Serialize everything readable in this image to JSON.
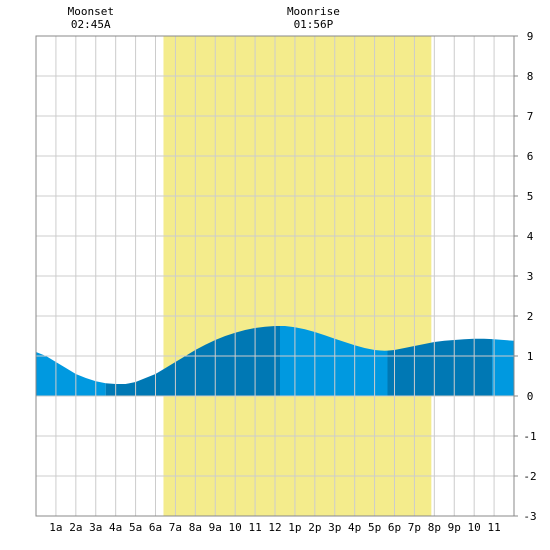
{
  "chart_data": {
    "type": "area",
    "moon_events": [
      {
        "label": "Moonset",
        "time": "02:45A",
        "hour": 2.75
      },
      {
        "label": "Moonrise",
        "time": "01:56P",
        "hour": 13.93
      }
    ],
    "daylight": {
      "start_hour": 6.4,
      "end_hour": 19.85
    },
    "x_tick_labels": [
      "1a",
      "2a",
      "3a",
      "4a",
      "5a",
      "6a",
      "7a",
      "8a",
      "9a",
      "10",
      "11",
      "12",
      "1p",
      "2p",
      "3p",
      "4p",
      "5p",
      "6p",
      "7p",
      "8p",
      "9p",
      "10",
      "11"
    ],
    "xlim": [
      0,
      24
    ],
    "ylim": [
      -3,
      9
    ],
    "y_ticks": [
      -3,
      -2,
      -1,
      0,
      1,
      2,
      3,
      4,
      5,
      6,
      7,
      8,
      9
    ],
    "grid": true,
    "tide": {
      "hours": [
        0,
        0.5,
        1,
        1.5,
        2,
        2.5,
        3,
        3.5,
        4,
        4.5,
        5,
        5.5,
        6,
        6.5,
        7,
        7.5,
        8,
        8.5,
        9,
        9.5,
        10,
        10.5,
        11,
        11.5,
        12,
        12.5,
        13,
        13.5,
        14,
        14.5,
        15,
        15.5,
        16,
        16.5,
        17,
        17.5,
        18,
        18.5,
        19,
        19.5,
        20,
        20.5,
        21,
        21.5,
        22,
        22.5,
        23,
        23.5,
        24
      ],
      "values": [
        1.1,
        1.0,
        0.85,
        0.7,
        0.55,
        0.45,
        0.37,
        0.32,
        0.3,
        0.3,
        0.35,
        0.45,
        0.55,
        0.7,
        0.85,
        1.0,
        1.15,
        1.28,
        1.4,
        1.5,
        1.58,
        1.65,
        1.7,
        1.73,
        1.75,
        1.75,
        1.72,
        1.67,
        1.6,
        1.52,
        1.43,
        1.35,
        1.27,
        1.2,
        1.15,
        1.13,
        1.15,
        1.2,
        1.25,
        1.3,
        1.35,
        1.38,
        1.4,
        1.42,
        1.43,
        1.43,
        1.42,
        1.4,
        1.38
      ],
      "color_light": "#0099e0",
      "color_dark": "#0078b4"
    },
    "colors": {
      "daylight": "#f4ec8c",
      "grid": "#cccccc"
    }
  }
}
